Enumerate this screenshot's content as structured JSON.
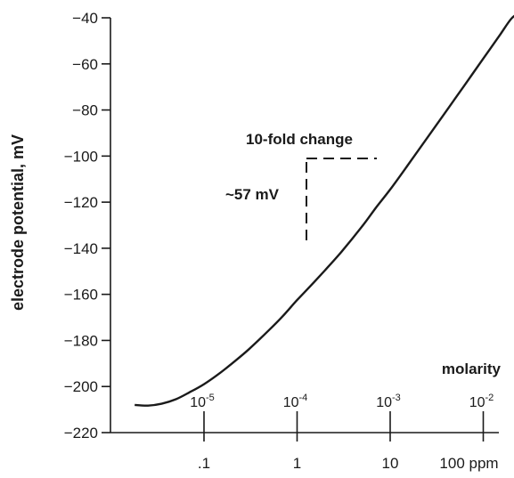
{
  "chart_data": {
    "type": "line",
    "ylabel": "electrode potential, mV",
    "ylim": [
      -220,
      -40
    ],
    "yticks": [
      -40,
      -60,
      -80,
      -100,
      -120,
      -140,
      -160,
      -180,
      -200,
      -220
    ],
    "ytick_labels": [
      "−40",
      "−60",
      "−80",
      "−100",
      "−120",
      "−140",
      "−160",
      "−180",
      "−200",
      "−220"
    ],
    "xscale": "log",
    "xlim_ppm": [
      0.016,
      400
    ],
    "xticks_ppm": [
      0.1,
      1,
      10,
      100
    ],
    "xtick_labels": [
      ".1",
      "1",
      "10",
      "100 ppm"
    ],
    "secondary_axis": {
      "label": "molarity",
      "ticks_ppm": [
        0.1,
        1,
        10,
        100
      ],
      "tick_labels": [
        {
          "base": "10",
          "exp": "-5"
        },
        {
          "base": "10",
          "exp": "-4"
        },
        {
          "base": "10",
          "exp": "-3"
        },
        {
          "base": "10",
          "exp": "-2"
        }
      ]
    },
    "series": [
      {
        "x": [
          0.018,
          0.025,
          0.035,
          0.05,
          0.07,
          0.1,
          0.15,
          0.2,
          0.3,
          0.5,
          0.7,
          1,
          1.5,
          2,
          3,
          5,
          7,
          10,
          15,
          20,
          30,
          50,
          70,
          100,
          150,
          200,
          250
        ],
        "y": [
          -208,
          -208.3,
          -207.5,
          -205.5,
          -202.5,
          -199,
          -194,
          -190,
          -184,
          -175.5,
          -169.5,
          -162.5,
          -155,
          -149.5,
          -141.5,
          -130.5,
          -122.5,
          -114.5,
          -104.7,
          -97.6,
          -87.6,
          -75,
          -66.6,
          -57.7,
          -47.6,
          -40.4,
          -37.5
        ]
      }
    ],
    "annotations": [
      {
        "text": "10-fold change"
      },
      {
        "text": "~57 mV"
      }
    ]
  }
}
